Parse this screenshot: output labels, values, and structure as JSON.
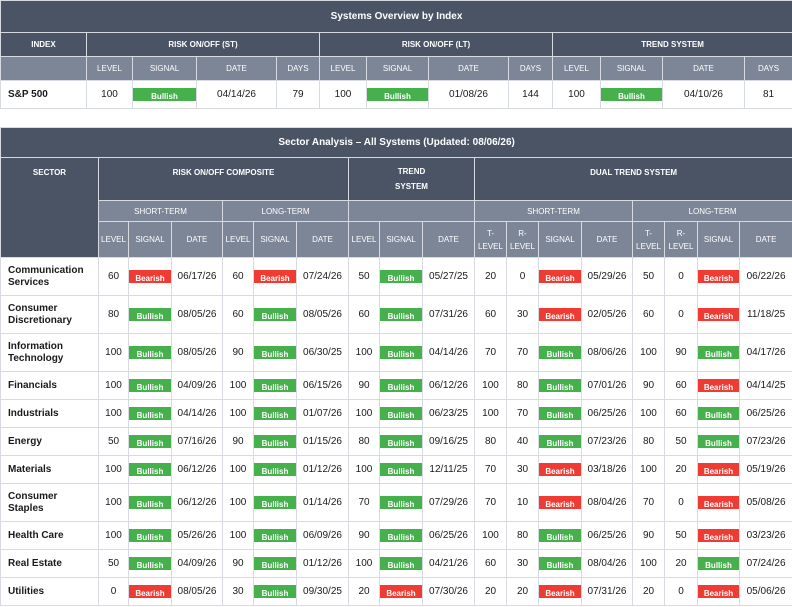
{
  "colors": {
    "header_dark": "#4a5465",
    "header_light": "#7d8697",
    "bullish": "#45b04c",
    "bearish": "#ee3b33"
  },
  "index_overview": {
    "title": "Systems Overview by Index",
    "group_headers": [
      "INDEX",
      "RISK ON/OFF (ST)",
      "RISK ON/OFF (LT)",
      "TREND SYSTEM"
    ],
    "sub_headers": [
      "LEVEL",
      "SIGNAL",
      "DATE",
      "DAYS"
    ],
    "row": {
      "index": "S&P 500",
      "st": {
        "level": "100",
        "signal": "Bullish",
        "date": "04/14/26",
        "days": "79"
      },
      "lt": {
        "level": "100",
        "signal": "Bullish",
        "date": "01/08/26",
        "days": "144"
      },
      "trend": {
        "level": "100",
        "signal": "Bullish",
        "date": "04/10/26",
        "days": "81"
      }
    }
  },
  "sector_analysis": {
    "title": "Sector Analysis – All Systems (Updated: 08/06/26)",
    "headers": {
      "sector": "SECTOR",
      "composite": "RISK ON/OFF COMPOSITE",
      "trend_1": "TREND",
      "trend_2": "SYSTEM",
      "dual": "DUAL TREND SYSTEM",
      "short_term": "SHORT-TERM",
      "long_term": "LONG-TERM",
      "level": "LEVEL",
      "signal": "SIGNAL",
      "date": "DATE",
      "t_level_1": "T-",
      "t_level_2": "LEVEL",
      "r_level_1": "R-",
      "r_level_2": "LEVEL"
    },
    "rows": [
      {
        "name": [
          "Communication",
          "Services"
        ],
        "st": [
          "60",
          "Bearish",
          "06/17/26"
        ],
        "lt": [
          "60",
          "Bearish",
          "07/24/26"
        ],
        "trend": [
          "50",
          "Bullish",
          "05/27/25"
        ],
        "dst": [
          "20",
          "0",
          "Bearish",
          "05/29/26"
        ],
        "dlt": [
          "50",
          "0",
          "Bearish",
          "06/22/26"
        ]
      },
      {
        "name": [
          "Consumer",
          "Discretionary"
        ],
        "st": [
          "80",
          "Bullish",
          "08/05/26"
        ],
        "lt": [
          "60",
          "Bullish",
          "08/05/26"
        ],
        "trend": [
          "60",
          "Bullish",
          "07/31/26"
        ],
        "dst": [
          "60",
          "30",
          "Bearish",
          "02/05/26"
        ],
        "dlt": [
          "60",
          "0",
          "Bearish",
          "11/18/25"
        ]
      },
      {
        "name": [
          "Information",
          "Technology"
        ],
        "st": [
          "100",
          "Bullish",
          "08/05/26"
        ],
        "lt": [
          "90",
          "Bullish",
          "06/30/25"
        ],
        "trend": [
          "100",
          "Bullish",
          "04/14/26"
        ],
        "dst": [
          "70",
          "70",
          "Bullish",
          "08/06/26"
        ],
        "dlt": [
          "100",
          "90",
          "Bullish",
          "04/17/26"
        ]
      },
      {
        "name": [
          "Financials"
        ],
        "st": [
          "100",
          "Bullish",
          "04/09/26"
        ],
        "lt": [
          "100",
          "Bullish",
          "06/15/26"
        ],
        "trend": [
          "90",
          "Bullish",
          "06/12/26"
        ],
        "dst": [
          "100",
          "80",
          "Bullish",
          "07/01/26"
        ],
        "dlt": [
          "90",
          "60",
          "Bearish",
          "04/14/25"
        ]
      },
      {
        "name": [
          "Industrials"
        ],
        "st": [
          "100",
          "Bullish",
          "04/14/26"
        ],
        "lt": [
          "100",
          "Bullish",
          "01/07/26"
        ],
        "trend": [
          "100",
          "Bullish",
          "06/23/25"
        ],
        "dst": [
          "100",
          "70",
          "Bullish",
          "06/25/26"
        ],
        "dlt": [
          "100",
          "60",
          "Bullish",
          "06/25/26"
        ]
      },
      {
        "name": [
          "Energy"
        ],
        "st": [
          "50",
          "Bullish",
          "07/16/26"
        ],
        "lt": [
          "90",
          "Bullish",
          "01/15/26"
        ],
        "trend": [
          "80",
          "Bullish",
          "09/16/25"
        ],
        "dst": [
          "80",
          "40",
          "Bullish",
          "07/23/26"
        ],
        "dlt": [
          "80",
          "50",
          "Bullish",
          "07/23/26"
        ]
      },
      {
        "name": [
          "Materials"
        ],
        "st": [
          "100",
          "Bullish",
          "06/12/26"
        ],
        "lt": [
          "100",
          "Bullish",
          "01/12/26"
        ],
        "trend": [
          "100",
          "Bullish",
          "12/11/25"
        ],
        "dst": [
          "70",
          "30",
          "Bearish",
          "03/18/26"
        ],
        "dlt": [
          "100",
          "20",
          "Bearish",
          "05/19/26"
        ]
      },
      {
        "name": [
          "Consumer",
          "Staples"
        ],
        "st": [
          "100",
          "Bullish",
          "06/12/26"
        ],
        "lt": [
          "100",
          "Bullish",
          "01/14/26"
        ],
        "trend": [
          "70",
          "Bullish",
          "07/29/26"
        ],
        "dst": [
          "70",
          "10",
          "Bearish",
          "08/04/26"
        ],
        "dlt": [
          "70",
          "0",
          "Bearish",
          "05/08/26"
        ]
      },
      {
        "name": [
          "Health Care"
        ],
        "st": [
          "100",
          "Bullish",
          "05/26/26"
        ],
        "lt": [
          "100",
          "Bullish",
          "06/09/26"
        ],
        "trend": [
          "90",
          "Bullish",
          "06/25/26"
        ],
        "dst": [
          "100",
          "80",
          "Bullish",
          "06/25/26"
        ],
        "dlt": [
          "90",
          "50",
          "Bearish",
          "03/23/26"
        ]
      },
      {
        "name": [
          "Real Estate"
        ],
        "st": [
          "50",
          "Bullish",
          "04/09/26"
        ],
        "lt": [
          "90",
          "Bullish",
          "01/12/26"
        ],
        "trend": [
          "100",
          "Bullish",
          "04/21/26"
        ],
        "dst": [
          "60",
          "30",
          "Bullish",
          "08/04/26"
        ],
        "dlt": [
          "100",
          "20",
          "Bullish",
          "07/24/26"
        ]
      },
      {
        "name": [
          "Utilities"
        ],
        "st": [
          "0",
          "Bearish",
          "08/05/26"
        ],
        "lt": [
          "30",
          "Bullish",
          "09/30/25"
        ],
        "trend": [
          "20",
          "Bearish",
          "07/30/26"
        ],
        "dst": [
          "20",
          "20",
          "Bearish",
          "07/31/26"
        ],
        "dlt": [
          "20",
          "0",
          "Bearish",
          "05/06/26"
        ]
      }
    ]
  }
}
